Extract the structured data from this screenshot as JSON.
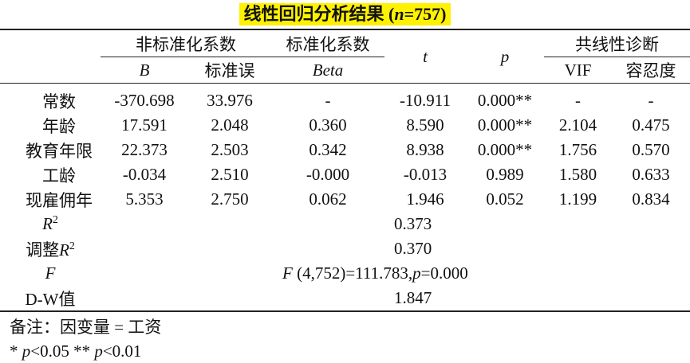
{
  "title": {
    "prefix": "线性回归分析结果 (",
    "n_symbol": "n",
    "n_value": "=757)"
  },
  "headers": {
    "group_unstd": "非标准化系数",
    "group_std": "标准化系数",
    "col_t": "t",
    "col_p": "p",
    "group_collin": "共线性诊断",
    "col_B": "B",
    "col_se": "标准误",
    "col_beta": "Beta",
    "col_vif": "VIF",
    "col_tol": "容忍度"
  },
  "rows": [
    {
      "label": "常数",
      "B": "-370.698",
      "se": "33.976",
      "beta": "-",
      "t": "-10.911",
      "p": "0.000**",
      "vif": "-",
      "tol": "-"
    },
    {
      "label": "年龄",
      "B": "17.591",
      "se": "2.048",
      "beta": "0.360",
      "t": "8.590",
      "p": "0.000**",
      "vif": "2.104",
      "tol": "0.475"
    },
    {
      "label": "教育年限",
      "B": "22.373",
      "se": "2.503",
      "beta": "0.342",
      "t": "8.938",
      "p": "0.000**",
      "vif": "1.756",
      "tol": "0.570"
    },
    {
      "label": "工龄",
      "B": "-0.034",
      "se": "2.510",
      "beta": "-0.000",
      "t": "-0.013",
      "p": "0.989",
      "vif": "1.580",
      "tol": "0.633"
    },
    {
      "label": "现雇佣年",
      "B": "5.353",
      "se": "2.750",
      "beta": "0.062",
      "t": "1.946",
      "p": "0.052",
      "vif": "1.199",
      "tol": "0.834"
    }
  ],
  "stats": {
    "r2_symbol": "R",
    "r2_sup": "2",
    "r2_value": "0.373",
    "adj_prefix": "调整",
    "adj_symbol": "R",
    "adj_sup": "2",
    "adj_value": "0.370",
    "f_label": "F",
    "f_symbol": "F",
    "f_args": " (4,752)=111.783,",
    "f_p_symbol": "p",
    "f_p_value": "=0.000",
    "dw_label": "D-W值",
    "dw_value": "1.847"
  },
  "notes": {
    "line1": "备注：因变量 = 工资",
    "sig1_star": "* ",
    "sig1_p": "p",
    "sig1_val": "<0.05 ** ",
    "sig2_p": "p",
    "sig2_val": "<0.01"
  }
}
